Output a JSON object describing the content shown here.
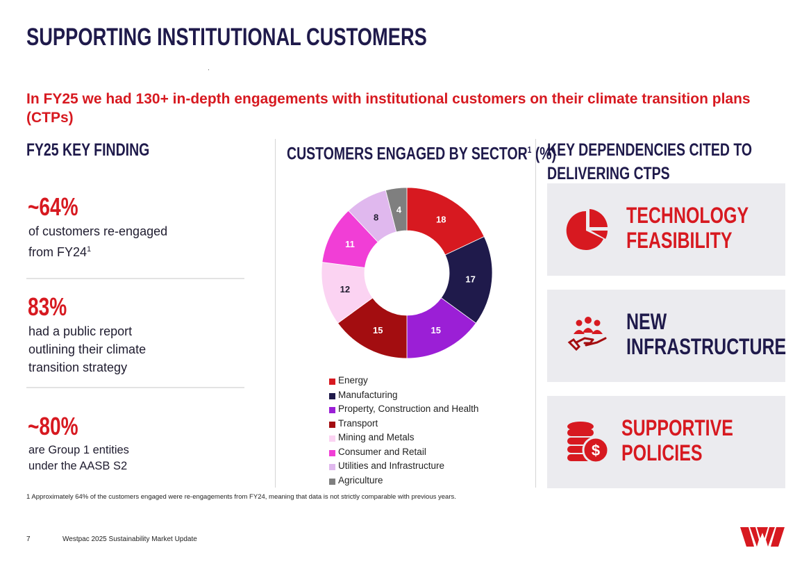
{
  "title": "SUPPORTING INSTITUTIONAL CUSTOMERS",
  "subtitle": "In FY25 we had 130+ in-depth engagements with institutional customers on their climate transition plans (CTPs)",
  "findings": {
    "heading": "FY25 KEY FINDING",
    "items": [
      {
        "value": "~64%",
        "text_line1": "of customers re-engaged",
        "text_line2_main": "from FY24",
        "text_line2_sup": "1"
      },
      {
        "value": "83%",
        "text_line1": "had a public report",
        "text_line2": "outlining their climate",
        "text_line3": "transition strategy"
      },
      {
        "value": "~80%",
        "text_line1": "are Group 1 entities",
        "text_line2": "under the AASB S2"
      }
    ]
  },
  "chart_heading": {
    "main": "CUSTOMERS ENGAGED BY SECTOR",
    "sup": "1",
    "suffix": " (%)"
  },
  "chart_data": {
    "type": "pie",
    "donut": true,
    "title": "CUSTOMERS ENGAGED BY SECTOR1 (%)",
    "categories": [
      "Energy",
      "Manufacturing",
      "Property, Construction and Health",
      "Transport",
      "Mining and Metals",
      "Consumer and Retail",
      "Utilities and Infrastructure",
      "Agriculture"
    ],
    "values": [
      18,
      17,
      15,
      15,
      12,
      11,
      8,
      4
    ],
    "colors": [
      "#d71920",
      "#1f1a4b",
      "#9b1fd6",
      "#a30d10",
      "#fbd3f2",
      "#f13ed6",
      "#e0b8ee",
      "#7f7f7f"
    ],
    "label_colors": [
      "#ffffff",
      "#ffffff",
      "#ffffff",
      "#ffffff",
      "#1f1c2f",
      "#ffffff",
      "#1f1c2f",
      "#ffffff"
    ],
    "legend": "bottom"
  },
  "dependencies": {
    "heading_line1": "KEY DEPENDENCIES CITED TO",
    "heading_line2": "DELIVERING CTPS",
    "cards": [
      {
        "line1": "TECHNOLOGY",
        "line2": "FEASIBILITY",
        "icon": "pie-chart-icon",
        "color": "#d71920"
      },
      {
        "line1": "NEW",
        "line2": "INFRASTRUCTURE",
        "icon": "people-hand-icon",
        "color": "#1f1a4b"
      },
      {
        "line1": "SUPPORTIVE",
        "line2": "POLICIES",
        "icon": "coins-dollar-icon",
        "color": "#d71920"
      }
    ]
  },
  "footnote": "1 Approximately 64% of the customers engaged were re-engagements from FY24, meaning that data is not strictly comparable with previous years.",
  "footer": {
    "page": "7",
    "text": "Westpac 2025 Sustainability Market Update"
  },
  "brand_color": "#d71920"
}
